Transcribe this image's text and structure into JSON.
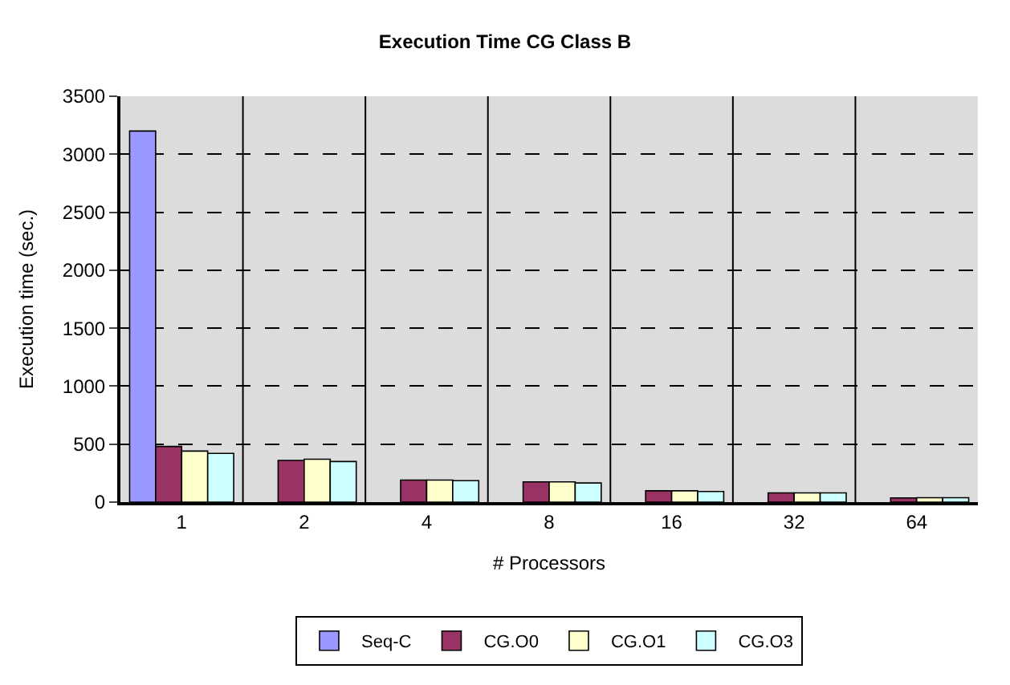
{
  "chart_data": {
    "type": "bar",
    "title": "Execution Time CG Class B",
    "xlabel": "# Processors",
    "ylabel": "Execution time (sec.)",
    "categories": [
      "1",
      "2",
      "4",
      "8",
      "16",
      "32",
      "64"
    ],
    "series": [
      {
        "name": "Seq-C",
        "color": "#9999ff",
        "values": [
          3200,
          null,
          null,
          null,
          null,
          null,
          null
        ]
      },
      {
        "name": "CG.O0",
        "color": "#993366",
        "values": [
          480,
          360,
          190,
          175,
          98,
          80,
          36
        ]
      },
      {
        "name": "CG.O1",
        "color": "#ffffcc",
        "values": [
          440,
          370,
          190,
          175,
          98,
          80,
          38
        ]
      },
      {
        "name": "CG.O3",
        "color": "#ccffff",
        "values": [
          420,
          350,
          185,
          165,
          92,
          80,
          38
        ]
      }
    ],
    "ylim": [
      0,
      3500
    ],
    "yticks": [
      0,
      500,
      1000,
      1500,
      2000,
      2500,
      3000,
      3500
    ],
    "grid": true,
    "legend": "bottom"
  }
}
